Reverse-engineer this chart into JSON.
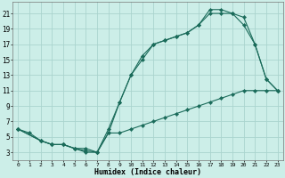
{
  "xlabel": "Humidex (Indice chaleur)",
  "bg_color": "#cceee8",
  "grid_color": "#aad4ce",
  "line_color": "#1a6b5a",
  "xlim": [
    -0.5,
    23.5
  ],
  "ylim": [
    2,
    22.5
  ],
  "xticks": [
    0,
    1,
    2,
    3,
    4,
    5,
    6,
    7,
    8,
    9,
    10,
    11,
    12,
    13,
    14,
    15,
    16,
    17,
    18,
    19,
    20,
    21,
    22,
    23
  ],
  "yticks": [
    3,
    5,
    7,
    9,
    11,
    13,
    15,
    17,
    19,
    21
  ],
  "line1_x": [
    0,
    1,
    2,
    3,
    4,
    5,
    6,
    7,
    8,
    9,
    10,
    11,
    12,
    13,
    14,
    15,
    16,
    17,
    18,
    19,
    20,
    21,
    22,
    23
  ],
  "line1_y": [
    6.0,
    5.5,
    4.5,
    4.0,
    4.0,
    3.5,
    3.2,
    3.0,
    5.5,
    5.5,
    6.0,
    6.5,
    7.0,
    7.5,
    8.0,
    8.5,
    9.0,
    9.5,
    10.0,
    10.5,
    11.0,
    11.0,
    11.0,
    11.0
  ],
  "line2_x": [
    0,
    2,
    3,
    4,
    5,
    6,
    7,
    8,
    9,
    10,
    11,
    12,
    13,
    14,
    15,
    16,
    17,
    18,
    19,
    20,
    21,
    22,
    23
  ],
  "line2_y": [
    6.0,
    4.5,
    4.0,
    4.0,
    3.5,
    3.0,
    3.0,
    5.5,
    9.5,
    13.0,
    15.5,
    17.0,
    17.5,
    18.0,
    18.5,
    19.5,
    21.5,
    21.5,
    21.0,
    20.5,
    17.0,
    12.5,
    11.0
  ],
  "line3_x": [
    0,
    2,
    3,
    4,
    5,
    6,
    7,
    8,
    9,
    10,
    11,
    12,
    13,
    14,
    15,
    16,
    17,
    18,
    19,
    20,
    21,
    22,
    23
  ],
  "line3_y": [
    6.0,
    4.5,
    4.0,
    4.0,
    3.5,
    3.5,
    3.0,
    6.0,
    9.5,
    13.0,
    15.0,
    17.0,
    17.5,
    18.0,
    18.5,
    19.5,
    21.0,
    21.0,
    21.0,
    19.5,
    17.0,
    12.5,
    11.0
  ]
}
